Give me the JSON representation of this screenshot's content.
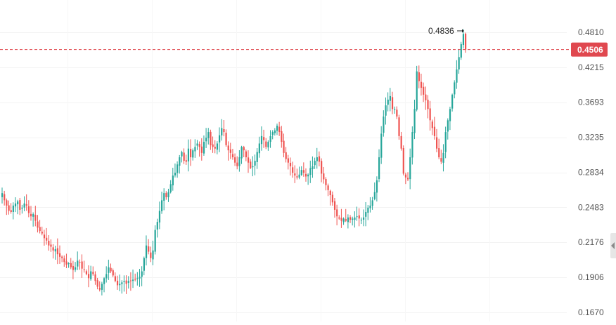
{
  "colors": {
    "up": "#26a69a",
    "down": "#ef5350",
    "grid": "#f3f3f3",
    "axis_text": "#555555",
    "price_line": "#e0484f",
    "price_badge": "#e0484f"
  },
  "chart_data": {
    "type": "candlestick",
    "title": "",
    "xlabel": "",
    "ylabel": "",
    "y_axis_position": "right",
    "y_ticks": [
      0.167,
      0.1906,
      0.2176,
      0.2483,
      0.2834,
      0.3235,
      0.3693,
      0.4215,
      0.481
    ],
    "y_tick_labels": [
      "0.1670",
      "0.1906",
      "0.2176",
      "0.2483",
      "0.2834",
      "0.3235",
      "0.3693",
      "0.4215",
      "0.4810"
    ],
    "grid": true,
    "last_price": 0.4506,
    "last_price_label": "0.4506",
    "high_marker": {
      "value": 0.4836,
      "label": "0.4836"
    },
    "closes": [
      0.262,
      0.255,
      0.25,
      0.245,
      0.244,
      0.25,
      0.252,
      0.254,
      0.246,
      0.248,
      0.252,
      0.25,
      0.243,
      0.24,
      0.242,
      0.236,
      0.23,
      0.227,
      0.225,
      0.221,
      0.219,
      0.215,
      0.214,
      0.211,
      0.212,
      0.208,
      0.206,
      0.205,
      0.202,
      0.2,
      0.201,
      0.198,
      0.196,
      0.198,
      0.203,
      0.202,
      0.197,
      0.196,
      0.193,
      0.19,
      0.195,
      0.193,
      0.188,
      0.184,
      0.182,
      0.186,
      0.19,
      0.193,
      0.198,
      0.195,
      0.192,
      0.188,
      0.185,
      0.186,
      0.187,
      0.188,
      0.186,
      0.188,
      0.188,
      0.189,
      0.189,
      0.19,
      0.191,
      0.195,
      0.205,
      0.215,
      0.21,
      0.205,
      0.211,
      0.228,
      0.235,
      0.245,
      0.255,
      0.262,
      0.258,
      0.263,
      0.271,
      0.28,
      0.283,
      0.292,
      0.3,
      0.306,
      0.296,
      0.295,
      0.31,
      0.3,
      0.308,
      0.312,
      0.316,
      0.312,
      0.305,
      0.318,
      0.323,
      0.33,
      0.314,
      0.312,
      0.31,
      0.316,
      0.326,
      0.335,
      0.33,
      0.314,
      0.308,
      0.305,
      0.3,
      0.294,
      0.29,
      0.3,
      0.312,
      0.308,
      0.3,
      0.294,
      0.288,
      0.29,
      0.296,
      0.306,
      0.316,
      0.325,
      0.32,
      0.312,
      0.318,
      0.325,
      0.33,
      0.332,
      0.338,
      0.33,
      0.318,
      0.305,
      0.298,
      0.294,
      0.29,
      0.283,
      0.28,
      0.278,
      0.281,
      0.286,
      0.283,
      0.279,
      0.281,
      0.288,
      0.29,
      0.296,
      0.3,
      0.295,
      0.282,
      0.276,
      0.27,
      0.265,
      0.26,
      0.253,
      0.246,
      0.24,
      0.238,
      0.236,
      0.238,
      0.236,
      0.239,
      0.237,
      0.238,
      0.239,
      0.24,
      0.238,
      0.237,
      0.239,
      0.244,
      0.248,
      0.25,
      0.255,
      0.263,
      0.275,
      0.3,
      0.328,
      0.35,
      0.365,
      0.373,
      0.378,
      0.36,
      0.36,
      0.35,
      0.325,
      0.31,
      0.282,
      0.278,
      0.276,
      0.3,
      0.33,
      0.36,
      0.415,
      0.4,
      0.39,
      0.38,
      0.372,
      0.36,
      0.345,
      0.335,
      0.325,
      0.31,
      0.3,
      0.295,
      0.305,
      0.33,
      0.345,
      0.36,
      0.38,
      0.398,
      0.418,
      0.438,
      0.46,
      0.478,
      0.4506
    ]
  }
}
